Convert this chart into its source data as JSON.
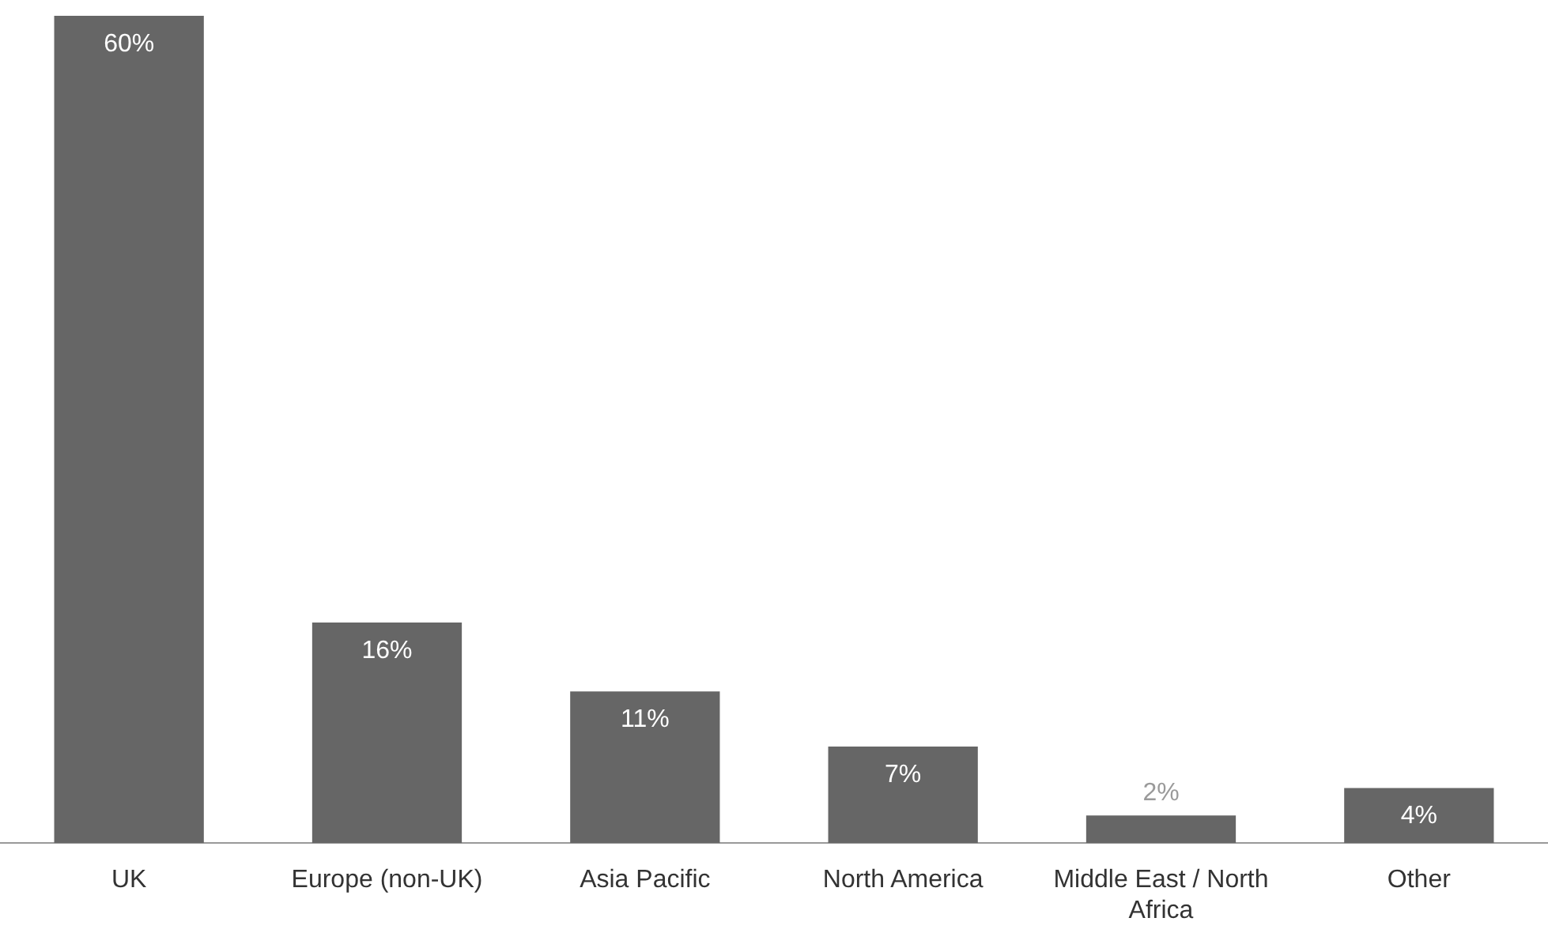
{
  "chart_data": {
    "type": "bar",
    "categories": [
      "UK",
      "Europe (non-UK)",
      "Asia Pacific",
      "North America",
      "Middle East / North Africa",
      "Other"
    ],
    "values": [
      60,
      16,
      11,
      7,
      2,
      4
    ],
    "value_labels": [
      "60%",
      "16%",
      "11%",
      "7%",
      "2%",
      "4%"
    ],
    "color": "#666666"
  }
}
